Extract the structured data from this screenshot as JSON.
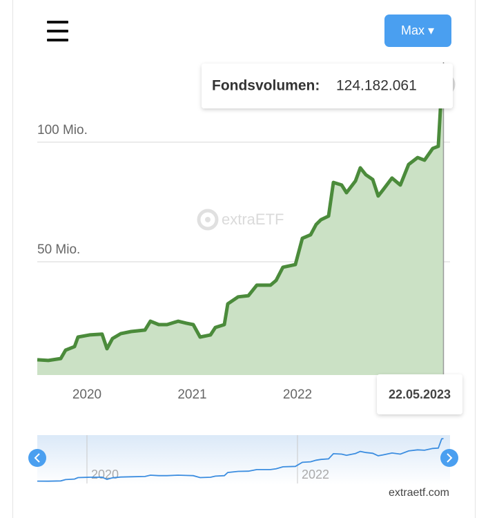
{
  "chart_data": {
    "type": "area",
    "range_button": "Max ▾",
    "tooltip": {
      "label": "Fondsvolumen:",
      "value": 124182061,
      "value_label": "124.182.061",
      "date_label": "22.05.2023"
    },
    "watermark": "extraETF",
    "source": "extraetf.com",
    "color": "#4b8b3b",
    "fill_color": "#cbe1c5",
    "x": [
      2019.528,
      2019.633,
      2019.751,
      2019.797,
      2019.882,
      2019.915,
      2020.026,
      2020.144,
      2020.19,
      2020.243,
      2020.321,
      2020.42,
      2020.551,
      2020.603,
      2020.682,
      2020.761,
      2020.866,
      2020.944,
      2021.01,
      2021.075,
      2021.174,
      2021.22,
      2021.305,
      2021.338,
      2021.436,
      2021.534,
      2021.613,
      2021.698,
      2021.744,
      2021.797,
      2021.862,
      2021.98,
      2022.046,
      2022.125,
      2022.177,
      2022.223,
      2022.295,
      2022.341,
      2022.42,
      2022.466,
      2022.551,
      2022.597,
      2022.649,
      2022.715,
      2022.767,
      2022.813,
      2022.898,
      2022.977,
      2023.056,
      2023.141,
      2023.207,
      2023.285,
      2023.338,
      2023.37,
      2023.387
    ],
    "values": [
      9000000,
      8700000,
      9500000,
      13000000,
      14500000,
      18500000,
      19400000,
      19700000,
      13600000,
      17900000,
      19900000,
      20800000,
      21400000,
      25100000,
      23700000,
      23700000,
      25100000,
      24300000,
      23700000,
      18500000,
      19400000,
      22500000,
      23700000,
      32400000,
      35300000,
      35800000,
      40200000,
      40200000,
      40200000,
      42200000,
      47700000,
      48800000,
      59800000,
      61300000,
      65600000,
      67600000,
      69100000,
      83200000,
      82100000,
      78900000,
      83800000,
      89300000,
      86400000,
      84400000,
      77500000,
      80100000,
      85000000,
      82100000,
      90700000,
      93600000,
      92500000,
      97400000,
      98300000,
      123400000,
      124182061
    ],
    "xlim": [
      2019.528,
      2023.45
    ],
    "xticks": [
      2020,
      2021,
      2022
    ],
    "ylim": [
      2600000,
      133500000
    ],
    "yticks": [
      {
        "value": 50000000,
        "label": "50 Mio."
      },
      {
        "value": 100000000,
        "label": "100 Mio."
      }
    ],
    "grid": true,
    "navigator_color": "#3b8de0",
    "navigator_xticks": [
      2020,
      2022
    ]
  }
}
